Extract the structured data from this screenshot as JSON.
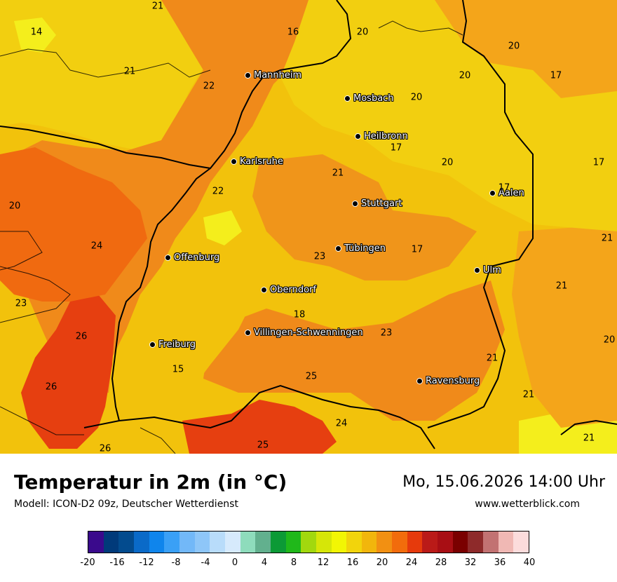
{
  "map": {
    "cities": [
      {
        "id": "mannheim",
        "name": "Mannheim"
      },
      {
        "id": "mosbach",
        "name": "Mosbach"
      },
      {
        "id": "heilbronn",
        "name": "Heilbronn"
      },
      {
        "id": "karlsruhe",
        "name": "Karlsruhe"
      },
      {
        "id": "stuttgart",
        "name": "Stuttgart"
      },
      {
        "id": "aalen",
        "name": "Aalen"
      },
      {
        "id": "tuebingen",
        "name": "Tübingen"
      },
      {
        "id": "offenburg",
        "name": "Offenburg"
      },
      {
        "id": "ulm",
        "name": "Ulm"
      },
      {
        "id": "oberndorf",
        "name": "Oberndorf"
      },
      {
        "id": "villingen-schwenningen",
        "name": "Villingen-Schwenningen"
      },
      {
        "id": "freiburg",
        "name": "Freiburg"
      },
      {
        "id": "ravensburg",
        "name": "Ravensburg"
      }
    ],
    "temperature_labels": [
      "21",
      "14",
      "16",
      "20",
      "20",
      "21",
      "22",
      "20",
      "17",
      "20",
      "17",
      "17",
      "20",
      "17",
      "21",
      "22",
      "20",
      "24",
      "21",
      "23",
      "17",
      "23",
      "18",
      "21",
      "26",
      "23",
      "20",
      "15",
      "21",
      "25",
      "26",
      "21",
      "24",
      "26",
      "25",
      "21"
    ]
  },
  "header": {
    "title": "Temperatur in 2m (in °C)",
    "model": "Modell: ICON-D2 09z, Deutscher Wetterdienst",
    "datetime": "Mo, 15.06.2026 14:00 Uhr",
    "website": "www.wetterblick.com"
  },
  "legend": {
    "colors": [
      "#3a0a8c",
      "#013a7a",
      "#034b8e",
      "#0a6ac8",
      "#0f85ec",
      "#3aa0f6",
      "#72b8f8",
      "#8ec6f8",
      "#b8dcfa",
      "#d6eafc",
      "#8edcbc",
      "#62b08e",
      "#0c9a36",
      "#20b81a",
      "#a2d80e",
      "#d6e608",
      "#f2f604",
      "#f2d40c",
      "#f2b60c",
      "#f29012",
      "#f26c0c",
      "#e63a0c",
      "#ba1a18",
      "#a80e14",
      "#7a0000",
      "#8e2a2a",
      "#c27272",
      "#f0b8b4",
      "#fcdcdc"
    ],
    "ticks": [
      "-20",
      "-16",
      "-12",
      "-8",
      "-4",
      "0",
      "4",
      "8",
      "12",
      "16",
      "20",
      "24",
      "28",
      "32",
      "36",
      "40"
    ],
    "tick_values": [
      -20,
      -16,
      -12,
      -8,
      -4,
      0,
      4,
      8,
      12,
      16,
      20,
      24,
      28,
      32,
      36,
      40
    ],
    "min": -20,
    "max": 40
  },
  "palette": {
    "warm_orange": "#f08a1a",
    "orange": "#f2a51a",
    "yellow": "#f2cf10",
    "bright_yellow": "#f4ee1c",
    "red_orange": "#e63f10",
    "light_orange": "#f4b52a"
  }
}
